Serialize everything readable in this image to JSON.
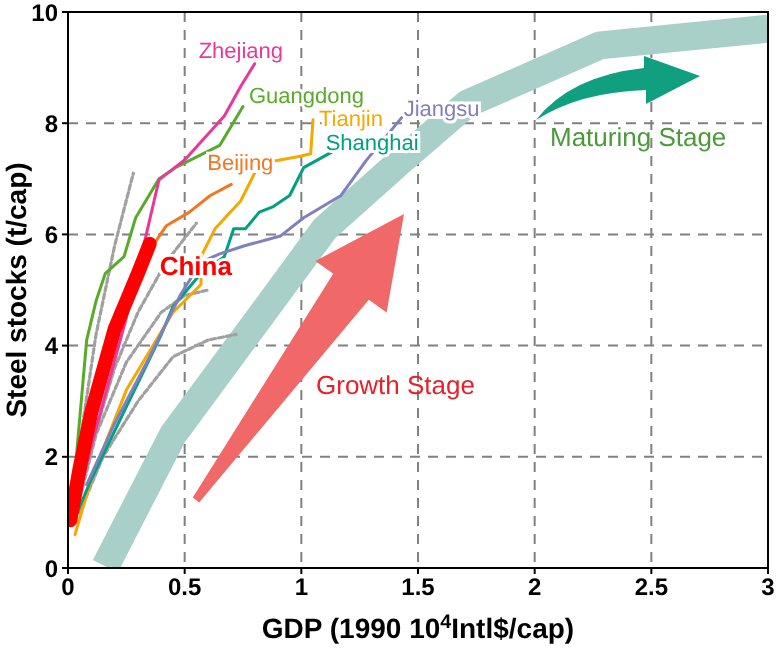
{
  "chart_data": {
    "type": "line",
    "xlabel": "GDP (1990 10$^{4}$Intl$/cap)",
    "ylabel": "Steel stocks (t/cap)",
    "xlim": [
      0,
      3
    ],
    "xticks": [
      0,
      0.5,
      1,
      1.5,
      2,
      2.5,
      3
    ],
    "ylim": [
      0,
      10
    ],
    "yticks": [
      0,
      2,
      4,
      6,
      8,
      10
    ],
    "grid": true,
    "legend": false,
    "marker": "none",
    "line_style": "solid",
    "annotations": [
      "Growth Stage",
      "Maturing Stage"
    ],
    "series": [
      {
        "color": "#a8d0c8",
        "x": [
          0.16,
          0.45,
          0.82,
          1.1,
          1.42,
          1.71,
          2.28,
          3.0
        ],
        "values": [
          0.03,
          2.4,
          4.5,
          6.1,
          7.3,
          8.35,
          9.4,
          9.7
        ]
      },
      {
        "color": "#a0a0a0",
        "line_style": "dotted",
        "x": [
          0.02,
          0.1,
          0.2,
          0.3,
          0.42,
          0.55
        ],
        "values": [
          0.8,
          2.2,
          3.6,
          4.6,
          5.5,
          6.2
        ]
      },
      {
        "color": "#a0a0a0",
        "line_style": "dotted",
        "x": [
          0.05,
          0.15,
          0.3,
          0.45,
          0.6,
          0.72
        ],
        "values": [
          1.0,
          2.0,
          3.0,
          3.8,
          4.1,
          4.2
        ]
      },
      {
        "color": "#a0a0a0",
        "line_style": "dotted",
        "x": [
          0.03,
          0.12,
          0.25,
          0.4,
          0.5,
          0.6
        ],
        "values": [
          0.9,
          2.4,
          3.7,
          4.6,
          4.9,
          5.0
        ]
      },
      {
        "color": "#a0a0a0",
        "line_style": "dotted",
        "x": [
          0.02,
          0.06,
          0.12,
          0.2,
          0.28
        ],
        "values": [
          1.0,
          2.5,
          4.2,
          5.8,
          7.1
        ]
      },
      {
        "name": "Guangdong",
        "color": "#5aaa2a",
        "x": [
          0.02,
          0.04,
          0.08,
          0.12,
          0.16,
          0.24,
          0.29,
          0.39,
          0.46,
          0.65,
          0.75
        ],
        "values": [
          1.0,
          2.2,
          4.1,
          4.8,
          5.3,
          5.6,
          6.3,
          7.0,
          7.2,
          7.6,
          8.3
        ]
      },
      {
        "name": "Zhejiang",
        "color": "#e8389a",
        "x": [
          0.03,
          0.1,
          0.25,
          0.33,
          0.35,
          0.39,
          0.5,
          0.67,
          0.74,
          0.8
        ],
        "values": [
          1.0,
          2.2,
          4.5,
          5.9,
          6.26,
          6.98,
          7.34,
          8.13,
          8.66,
          9.07
        ]
      },
      {
        "name": "Beijing",
        "color": "#f07820",
        "x": [
          0.3,
          0.42,
          0.52,
          0.61,
          0.7
        ],
        "values": [
          5.4,
          6.15,
          6.4,
          6.7,
          6.9
        ]
      },
      {
        "name": "Tianjin",
        "color": "#f5a800",
        "x": [
          0.03,
          0.1,
          0.25,
          0.45,
          0.57,
          0.57,
          0.63,
          0.74,
          0.82,
          0.99,
          1.04,
          1.05
        ],
        "values": [
          0.6,
          1.6,
          3.2,
          4.6,
          5.1,
          5.6,
          6.1,
          6.6,
          7.27,
          7.4,
          7.45,
          8.06
        ]
      },
      {
        "name": "Shanghai",
        "color": "#00a080",
        "x": [
          0.03,
          0.1,
          0.25,
          0.4,
          0.45,
          0.57,
          0.67,
          0.71,
          0.76,
          0.82,
          0.88,
          0.95,
          1.01,
          1.13
        ],
        "values": [
          0.9,
          1.6,
          2.9,
          4.2,
          4.7,
          5.3,
          5.6,
          6.1,
          6.1,
          6.4,
          6.5,
          6.7,
          7.2,
          7.48
        ]
      },
      {
        "name": "Jiangsu",
        "color": "#8080c0",
        "x": [
          0.08,
          0.2,
          0.35,
          0.48,
          0.57,
          0.65,
          0.76,
          0.91,
          1.01,
          1.17,
          1.28,
          1.43
        ],
        "values": [
          1.5,
          2.6,
          3.8,
          4.9,
          5.5,
          5.65,
          5.8,
          5.97,
          6.3,
          6.7,
          7.34,
          8.1
        ]
      },
      {
        "name": "China",
        "color": "#ff0000",
        "x": [
          0.01,
          0.05,
          0.1,
          0.2,
          0.3,
          0.35
        ],
        "values": [
          0.86,
          1.8,
          2.8,
          4.3,
          5.3,
          5.83
        ]
      }
    ]
  }
}
